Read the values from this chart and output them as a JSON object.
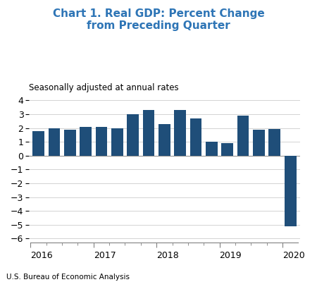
{
  "title": "Chart 1. Real GDP: Percent Change\nfrom Preceding Quarter",
  "subtitle": "Seasonally adjusted at annual rates",
  "bar_color": "#1F4E79",
  "bar_values": [
    1.75,
    2.0,
    1.85,
    2.1,
    2.1,
    2.0,
    3.0,
    3.3,
    2.3,
    3.3,
    2.7,
    1.0,
    0.9,
    2.9,
    1.85,
    1.95,
    -5.1
  ],
  "xlabels": [
    "2016",
    "2017",
    "2018",
    "2019",
    "2020"
  ],
  "ylabel_text": "",
  "ylim": [
    -6.3,
    4.5
  ],
  "yticks": [
    -6,
    -5,
    -4,
    -3,
    -2,
    -1,
    0,
    1,
    2,
    3,
    4
  ],
  "footer": "U.S. Bureau of Economic Analysis",
  "title_color": "#2E75B6",
  "footer_fontsize": 7.5,
  "title_fontsize": 11,
  "subtitle_fontsize": 8.5
}
